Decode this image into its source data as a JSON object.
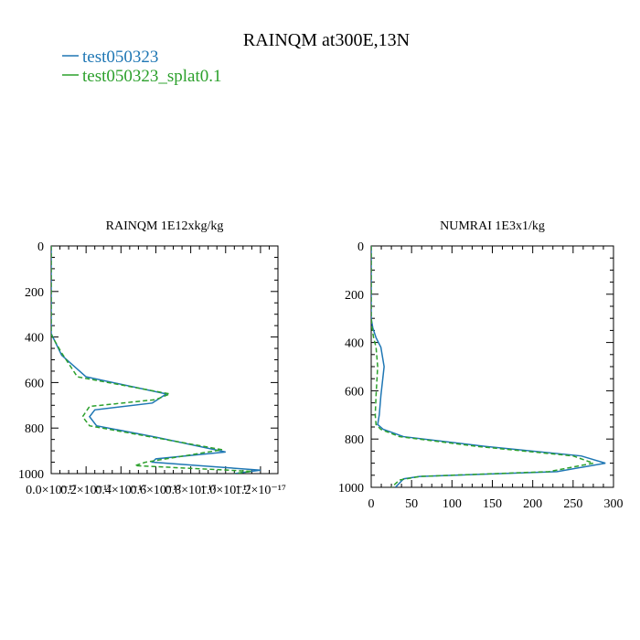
{
  "page": {
    "title": "RAINQM at300E,13N",
    "legend": [
      {
        "label": "test050323",
        "color": "#1f77b4",
        "dash": "solid"
      },
      {
        "label": "test050323_splat0.1",
        "color": "#2ca02c",
        "dash": "dashed"
      }
    ]
  },
  "chart_data": [
    {
      "type": "line",
      "title": "RAINQM  1E12xkg/kg",
      "xlabel": "",
      "ylabel": "",
      "xlim": [
        0.0,
        1.3e-17
      ],
      "ylim": [
        1000,
        0
      ],
      "y_inverted": true,
      "xticks": [
        0.0,
        2e-18,
        4e-18,
        6e-18,
        8e-18,
        1e-17,
        1.2e-17
      ],
      "xtick_labels": [
        "0.0×10⁻¹⁷",
        "0.2×10⁻¹⁷",
        "0.4×10⁻¹⁷",
        "0.6×10⁻¹⁷",
        "0.8×10⁻¹⁷",
        "1.0×10⁻¹⁷",
        "1.2×10⁻¹⁷"
      ],
      "yticks": [
        0,
        200,
        400,
        600,
        800,
        1000
      ],
      "ytick_labels": [
        "0",
        "200",
        "400",
        "600",
        "800",
        "1000"
      ],
      "series": [
        {
          "name": "test050323",
          "color": "#1f77b4",
          "dash": "solid",
          "points": [
            [
              0.0,
              0
            ],
            [
              0.0,
              330
            ],
            [
              0.0,
              385
            ],
            [
              6e-19,
              480
            ],
            [
              2e-18,
              575
            ],
            [
              6.6e-18,
              650
            ],
            [
              5.8e-18,
              690
            ],
            [
              2.5e-18,
              720
            ],
            [
              2.2e-18,
              750
            ],
            [
              2.6e-18,
              790
            ],
            [
              6e-18,
              840
            ],
            [
              1e-17,
              905
            ],
            [
              6e-18,
              935
            ],
            [
              5.8e-18,
              950
            ],
            [
              1.2e-17,
              985
            ],
            [
              1.05e-17,
              1000
            ]
          ]
        },
        {
          "name": "test050323_splat0.1",
          "color": "#2ca02c",
          "dash": "dashed",
          "points": [
            [
              0.0,
              0
            ],
            [
              0.0,
              340
            ],
            [
              0.0,
              390
            ],
            [
              6e-19,
              470
            ],
            [
              1.5e-18,
              575
            ],
            [
              6.8e-18,
              650
            ],
            [
              6e-18,
              675
            ],
            [
              2.2e-18,
              705
            ],
            [
              1.8e-18,
              750
            ],
            [
              2.2e-18,
              790
            ],
            [
              5.8e-18,
              840
            ],
            [
              9.8e-18,
              895
            ],
            [
              5.4e-18,
              950
            ],
            [
              4.8e-18,
              965
            ],
            [
              1.15e-17,
              990
            ],
            [
              1.05e-17,
              1000
            ]
          ]
        }
      ]
    },
    {
      "type": "line",
      "title": "NUMRAI  1E3x1/kg",
      "xlabel": "",
      "ylabel": "",
      "xlim": [
        0,
        300
      ],
      "ylim": [
        1000,
        0
      ],
      "y_inverted": true,
      "xticks": [
        0,
        50,
        100,
        150,
        200,
        250,
        300
      ],
      "xtick_labels": [
        "0",
        "50",
        "100",
        "150",
        "200",
        "250",
        "300"
      ],
      "yticks": [
        0,
        200,
        400,
        600,
        800,
        1000
      ],
      "ytick_labels": [
        "0",
        "200",
        "400",
        "600",
        "800",
        "1000"
      ],
      "series": [
        {
          "name": "test050323",
          "color": "#1f77b4",
          "dash": "solid",
          "points": [
            [
              0,
              0
            ],
            [
              0,
              300
            ],
            [
              2,
              340
            ],
            [
              6,
              380
            ],
            [
              12,
              420
            ],
            [
              16,
              500
            ],
            [
              14,
              560
            ],
            [
              12,
              620
            ],
            [
              10,
              700
            ],
            [
              8,
              740
            ],
            [
              15,
              760
            ],
            [
              40,
              790
            ],
            [
              140,
              830
            ],
            [
              260,
              870
            ],
            [
              290,
              900
            ],
            [
              230,
              935
            ],
            [
              60,
              955
            ],
            [
              40,
              965
            ],
            [
              30,
              1000
            ]
          ]
        },
        {
          "name": "test050323_splat0.1",
          "color": "#2ca02c",
          "dash": "dashed",
          "points": [
            [
              0,
              0
            ],
            [
              0,
              300
            ],
            [
              1,
              340
            ],
            [
              3,
              380
            ],
            [
              6,
              420
            ],
            [
              8,
              500
            ],
            [
              7,
              560
            ],
            [
              6,
              620
            ],
            [
              5,
              700
            ],
            [
              6,
              740
            ],
            [
              12,
              760
            ],
            [
              35,
              790
            ],
            [
              130,
              830
            ],
            [
              250,
              870
            ],
            [
              275,
              900
            ],
            [
              220,
              935
            ],
            [
              60,
              955
            ],
            [
              35,
              970
            ],
            [
              25,
              1000
            ]
          ]
        }
      ]
    }
  ]
}
